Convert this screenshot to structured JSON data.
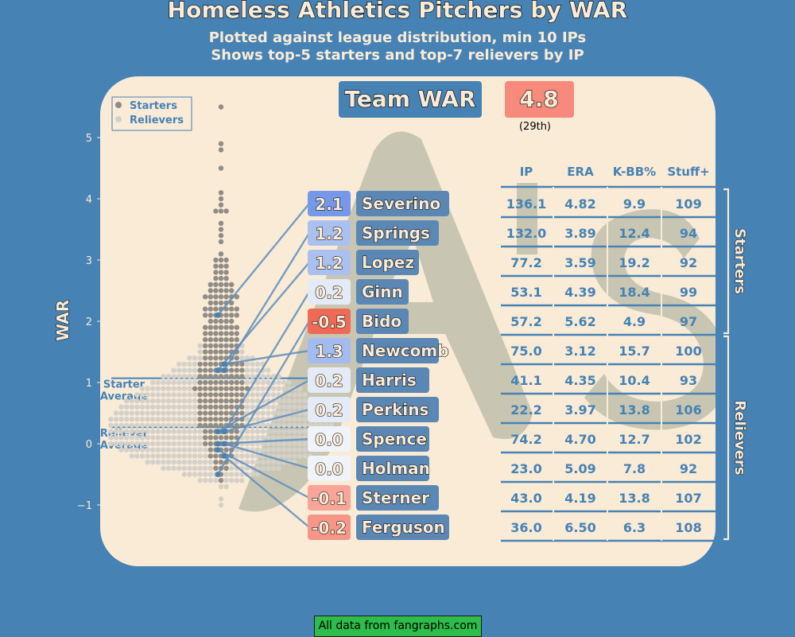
{
  "title": "Homeless Athletics Pitchers by WAR",
  "subtitle_line1": "Plotted against league distribution, min 10 IPs",
  "subtitle_line2": "Shows top-5 starters and top-7 relievers by IP",
  "source": "All data from fangraphs.com",
  "team_war": {
    "label": "Team WAR",
    "value": "4.8",
    "rank": "(29th)"
  },
  "colors": {
    "background": "#4682b4",
    "panel": "#faebd7",
    "logo": "#c8c6b2",
    "positive": "#6f94e8",
    "negative": "#ee6a56",
    "accent_text": "#4682b4"
  },
  "chart_data": {
    "type": "scatter",
    "ylabel": "WAR",
    "ylim": [
      -1.3,
      5.7
    ],
    "yticks": [
      -1,
      0,
      1,
      2,
      3,
      4,
      5
    ],
    "legend": {
      "position": "top-left",
      "entries": [
        "Starters",
        "Relievers"
      ]
    },
    "reference_lines": [
      {
        "label": "Starter Average",
        "value": 1.07
      },
      {
        "label": "Reliever Average",
        "value": 0.27
      }
    ],
    "distribution_counts": [
      {
        "war": 5.5,
        "starters": 1,
        "relievers": 0
      },
      {
        "war": 4.9,
        "starters": 1,
        "relievers": 0
      },
      {
        "war": 4.8,
        "starters": 1,
        "relievers": 0
      },
      {
        "war": 4.5,
        "starters": 1,
        "relievers": 0
      },
      {
        "war": 4.1,
        "starters": 1,
        "relievers": 0
      },
      {
        "war": 4.0,
        "starters": 1,
        "relievers": 0
      },
      {
        "war": 3.9,
        "starters": 1,
        "relievers": 0
      },
      {
        "war": 3.8,
        "starters": 3,
        "relievers": 0
      },
      {
        "war": 3.6,
        "starters": 1,
        "relievers": 0
      },
      {
        "war": 3.5,
        "starters": 1,
        "relievers": 0
      },
      {
        "war": 3.4,
        "starters": 1,
        "relievers": 0
      },
      {
        "war": 3.3,
        "starters": 1,
        "relievers": 0
      },
      {
        "war": 3.1,
        "starters": 1,
        "relievers": 0
      },
      {
        "war": 3.0,
        "starters": 3,
        "relievers": 0
      },
      {
        "war": 2.9,
        "starters": 3,
        "relievers": 0
      },
      {
        "war": 2.8,
        "starters": 3,
        "relievers": 0
      },
      {
        "war": 2.7,
        "starters": 3,
        "relievers": 0
      },
      {
        "war": 2.6,
        "starters": 5,
        "relievers": 0
      },
      {
        "war": 2.5,
        "starters": 5,
        "relievers": 0
      },
      {
        "war": 2.4,
        "starters": 7,
        "relievers": 0
      },
      {
        "war": 2.3,
        "starters": 5,
        "relievers": 0
      },
      {
        "war": 2.2,
        "starters": 7,
        "relievers": 0
      },
      {
        "war": 2.1,
        "starters": 7,
        "relievers": 0
      },
      {
        "war": 2.0,
        "starters": 5,
        "relievers": 0
      },
      {
        "war": 1.9,
        "starters": 7,
        "relievers": 0
      },
      {
        "war": 1.8,
        "starters": 7,
        "relievers": 0
      },
      {
        "war": 1.7,
        "starters": 7,
        "relievers": 0
      },
      {
        "war": 1.6,
        "starters": 7,
        "relievers": 2
      },
      {
        "war": 1.5,
        "starters": 7,
        "relievers": 2
      },
      {
        "war": 1.4,
        "starters": 7,
        "relievers": 6
      },
      {
        "war": 1.3,
        "starters": 9,
        "relievers": 8
      },
      {
        "war": 1.2,
        "starters": 9,
        "relievers": 10
      },
      {
        "war": 1.1,
        "starters": 9,
        "relievers": 14
      },
      {
        "war": 1.0,
        "starters": 9,
        "relievers": 18
      },
      {
        "war": 0.9,
        "starters": 11,
        "relievers": 20
      },
      {
        "war": 0.8,
        "starters": 9,
        "relievers": 24
      },
      {
        "war": 0.7,
        "starters": 9,
        "relievers": 28
      },
      {
        "war": 0.6,
        "starters": 9,
        "relievers": 30
      },
      {
        "war": 0.5,
        "starters": 9,
        "relievers": 32
      },
      {
        "war": 0.4,
        "starters": 9,
        "relievers": 34
      },
      {
        "war": 0.3,
        "starters": 9,
        "relievers": 34
      },
      {
        "war": 0.2,
        "starters": 7,
        "relievers": 36
      },
      {
        "war": 0.1,
        "starters": 7,
        "relievers": 36
      },
      {
        "war": 0.0,
        "starters": 7,
        "relievers": 36
      },
      {
        "war": -0.1,
        "starters": 5,
        "relievers": 34
      },
      {
        "war": -0.2,
        "starters": 5,
        "relievers": 30
      },
      {
        "war": -0.3,
        "starters": 3,
        "relievers": 26
      },
      {
        "war": -0.4,
        "starters": 3,
        "relievers": 20
      },
      {
        "war": -0.5,
        "starters": 1,
        "relievers": 14
      },
      {
        "war": -0.6,
        "starters": 1,
        "relievers": 8
      },
      {
        "war": -0.7,
        "starters": 0,
        "relievers": 2
      },
      {
        "war": -0.9,
        "starters": 0,
        "relievers": 1
      },
      {
        "war": -1.0,
        "starters": 0,
        "relievers": 1
      }
    ],
    "columns": [
      "IP",
      "ERA",
      "K-BB%",
      "Stuff+"
    ],
    "groups": [
      {
        "label": "Starters",
        "count": 5
      },
      {
        "label": "Relievers",
        "count": 7
      }
    ],
    "players": [
      {
        "name": "Severino",
        "war": "2.1",
        "ip": "136.1",
        "era": "4.82",
        "kbb": "9.9",
        "stuff": "109",
        "war_value": 2.1,
        "role": "starter"
      },
      {
        "name": "Springs",
        "war": "1.2",
        "ip": "132.0",
        "era": "3.89",
        "kbb": "12.4",
        "stuff": "94",
        "war_value": 1.2,
        "role": "starter"
      },
      {
        "name": "Lopez",
        "war": "1.2",
        "ip": "77.2",
        "era": "3.59",
        "kbb": "19.2",
        "stuff": "92",
        "war_value": 1.2,
        "role": "starter"
      },
      {
        "name": "Ginn",
        "war": "0.2",
        "ip": "53.1",
        "era": "4.39",
        "kbb": "18.4",
        "stuff": "99",
        "war_value": 0.2,
        "role": "starter"
      },
      {
        "name": "Bido",
        "war": "-0.5",
        "ip": "57.2",
        "era": "5.62",
        "kbb": "4.9",
        "stuff": "97",
        "war_value": -0.5,
        "role": "starter"
      },
      {
        "name": "Newcomb",
        "war": "1.3",
        "ip": "75.0",
        "era": "3.12",
        "kbb": "15.7",
        "stuff": "100",
        "war_value": 1.3,
        "role": "reliever"
      },
      {
        "name": "Harris",
        "war": "0.2",
        "ip": "41.1",
        "era": "4.35",
        "kbb": "10.4",
        "stuff": "93",
        "war_value": 0.2,
        "role": "reliever"
      },
      {
        "name": "Perkins",
        "war": "0.2",
        "ip": "22.2",
        "era": "3.97",
        "kbb": "13.8",
        "stuff": "106",
        "war_value": 0.2,
        "role": "reliever"
      },
      {
        "name": "Spence",
        "war": "0.0",
        "ip": "74.2",
        "era": "4.70",
        "kbb": "12.7",
        "stuff": "102",
        "war_value": 0.0,
        "role": "reliever"
      },
      {
        "name": "Holman",
        "war": "0.0",
        "ip": "23.0",
        "era": "5.09",
        "kbb": "7.8",
        "stuff": "92",
        "war_value": 0.0,
        "role": "reliever"
      },
      {
        "name": "Sterner",
        "war": "-0.1",
        "ip": "43.0",
        "era": "4.19",
        "kbb": "13.8",
        "stuff": "107",
        "war_value": -0.1,
        "role": "reliever"
      },
      {
        "name": "Ferguson",
        "war": "-0.2",
        "ip": "36.0",
        "era": "6.50",
        "kbb": "6.3",
        "stuff": "108",
        "war_value": -0.2,
        "role": "reliever"
      }
    ]
  }
}
